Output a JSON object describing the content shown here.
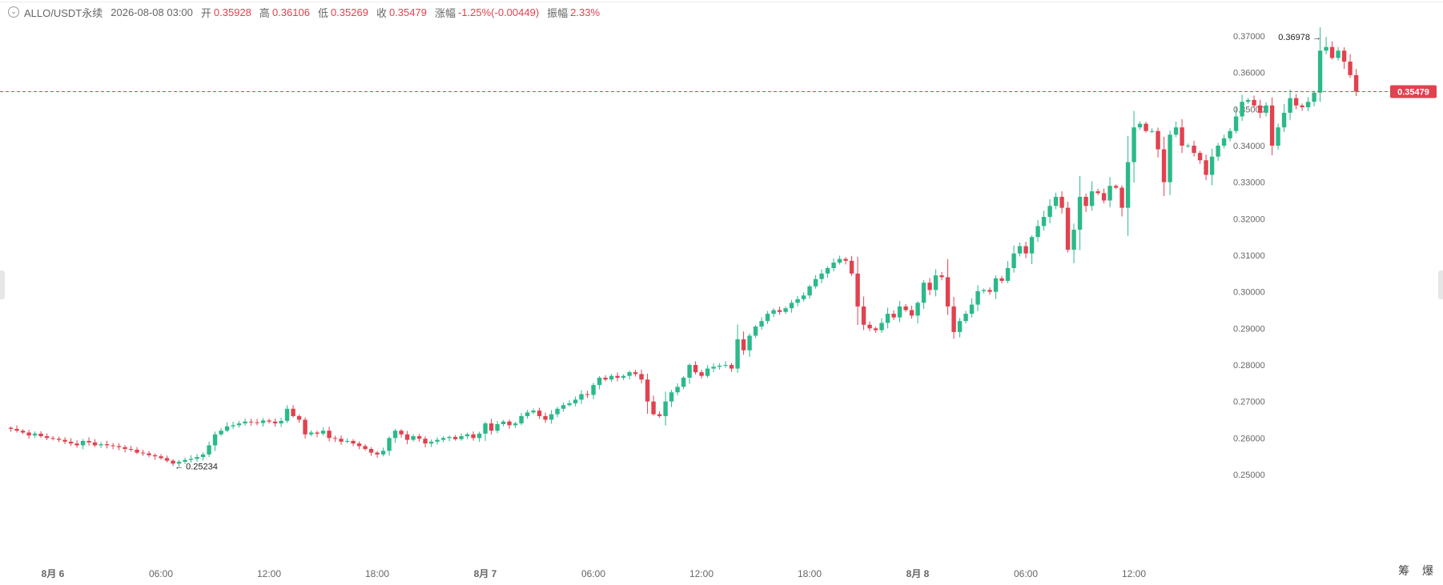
{
  "header": {
    "symbol": "ALLO/USDT永续",
    "datetime": "2026-08-08 03:00",
    "open_label": "开",
    "open": "0.35928",
    "high_label": "高",
    "high": "0.36106",
    "low_label": "低",
    "low": "0.35269",
    "close_label": "收",
    "close": "0.35479",
    "change_label": "涨幅",
    "change": "-1.25%(-0.00449)",
    "amplitude_label": "振幅",
    "amplitude": "2.33%"
  },
  "corner_label": "筹 爆",
  "colors": {
    "up": "#2bb98a",
    "down": "#e0424f",
    "axis_text": "#666666",
    "grid_line": "#ebebeb"
  },
  "chart_data": {
    "type": "candlestick",
    "interval": "1h",
    "ylim": [
      0.25,
      0.37
    ],
    "y_ticks": [
      "0.25000",
      "0.26000",
      "0.27000",
      "0.28000",
      "0.29000",
      "0.30000",
      "0.31000",
      "0.32000",
      "0.33000",
      "0.34000",
      "0.35000",
      "0.36000",
      "0.37000"
    ],
    "x_ticks": [
      {
        "label": "8月 6",
        "bold": true,
        "hour": 0
      },
      {
        "label": "06:00",
        "bold": false,
        "hour": 6
      },
      {
        "label": "12:00",
        "bold": false,
        "hour": 12
      },
      {
        "label": "18:00",
        "bold": false,
        "hour": 18
      },
      {
        "label": "8月 7",
        "bold": true,
        "hour": 24
      },
      {
        "label": "06:00",
        "bold": false,
        "hour": 30
      },
      {
        "label": "12:00",
        "bold": false,
        "hour": 36
      },
      {
        "label": "18:00",
        "bold": false,
        "hour": 42
      },
      {
        "label": "8月 8",
        "bold": true,
        "hour": 48
      },
      {
        "label": "06:00",
        "bold": false,
        "hour": 54
      },
      {
        "label": "12:00",
        "bold": false,
        "hour": 60
      }
    ],
    "first_candle_hour": -2.33,
    "candles_per_hour": 3,
    "close_series": [
      0.2625,
      0.262,
      0.2615,
      0.2607,
      0.2612,
      0.2605,
      0.26,
      0.2598,
      0.2595,
      0.259,
      0.2585,
      0.258,
      0.2592,
      0.2588,
      0.258,
      0.2583,
      0.258,
      0.2578,
      0.2575,
      0.257,
      0.2568,
      0.256,
      0.2558,
      0.2553,
      0.255,
      0.2545,
      0.2538,
      0.253,
      0.2535,
      0.254,
      0.2543,
      0.2548,
      0.2555,
      0.258,
      0.261,
      0.262,
      0.2632,
      0.2635,
      0.264,
      0.2645,
      0.2643,
      0.2641,
      0.2648,
      0.2645,
      0.264,
      0.2647,
      0.268,
      0.266,
      0.265,
      0.261,
      0.2615,
      0.2612,
      0.262,
      0.26,
      0.2598,
      0.259,
      0.2592,
      0.2585,
      0.2578,
      0.257,
      0.256,
      0.2555,
      0.2565,
      0.26,
      0.262,
      0.261,
      0.2595,
      0.2605,
      0.2598,
      0.2585,
      0.259,
      0.2595,
      0.26,
      0.2603,
      0.2597,
      0.2605,
      0.261,
      0.26,
      0.2612,
      0.264,
      0.262,
      0.2638,
      0.2645,
      0.2635,
      0.264,
      0.266,
      0.267,
      0.2675,
      0.266,
      0.265,
      0.2665,
      0.268,
      0.269,
      0.2695,
      0.2705,
      0.272,
      0.2718,
      0.2745,
      0.2765,
      0.276,
      0.277,
      0.2765,
      0.277,
      0.278,
      0.2775,
      0.276,
      0.27,
      0.2665,
      0.266,
      0.27,
      0.2725,
      0.274,
      0.2765,
      0.28,
      0.278,
      0.277,
      0.279,
      0.2795,
      0.2798,
      0.28,
      0.279,
      0.287,
      0.284,
      0.288,
      0.2905,
      0.292,
      0.294,
      0.295,
      0.2945,
      0.2955,
      0.297,
      0.298,
      0.299,
      0.3015,
      0.3035,
      0.305,
      0.3065,
      0.308,
      0.309,
      0.3085,
      0.305,
      0.296,
      0.291,
      0.29,
      0.2895,
      0.2915,
      0.294,
      0.293,
      0.296,
      0.295,
      0.2935,
      0.297,
      0.3025,
      0.3005,
      0.3045,
      0.304,
      0.296,
      0.289,
      0.292,
      0.294,
      0.2965,
      0.3002,
      0.3005,
      0.3,
      0.3037,
      0.303,
      0.3065,
      0.3105,
      0.3125,
      0.3105,
      0.315,
      0.318,
      0.3205,
      0.3235,
      0.326,
      0.323,
      0.3115,
      0.317,
      0.326,
      0.3235,
      0.3275,
      0.327,
      0.325,
      0.329,
      0.3285,
      0.323,
      0.3355,
      0.345,
      0.346,
      0.344,
      0.344,
      0.339,
      0.33,
      0.343,
      0.345,
      0.34,
      0.34,
      0.338,
      0.336,
      0.332,
      0.337,
      0.34,
      0.342,
      0.344,
      0.348,
      0.352,
      0.3525,
      0.351,
      0.349,
      0.351,
      0.34,
      0.345,
      0.349,
      0.353,
      0.351,
      0.3505,
      0.352,
      0.3545,
      0.366,
      0.367,
      0.364,
      0.366,
      0.363,
      0.3593,
      0.35479
    ],
    "max_marker": {
      "label": "0.36978",
      "arrow": "→"
    },
    "min_marker": {
      "label": "0.25234",
      "arrow": "←"
    },
    "last_price": {
      "value": 0.35479,
      "label": "0.35479"
    }
  }
}
